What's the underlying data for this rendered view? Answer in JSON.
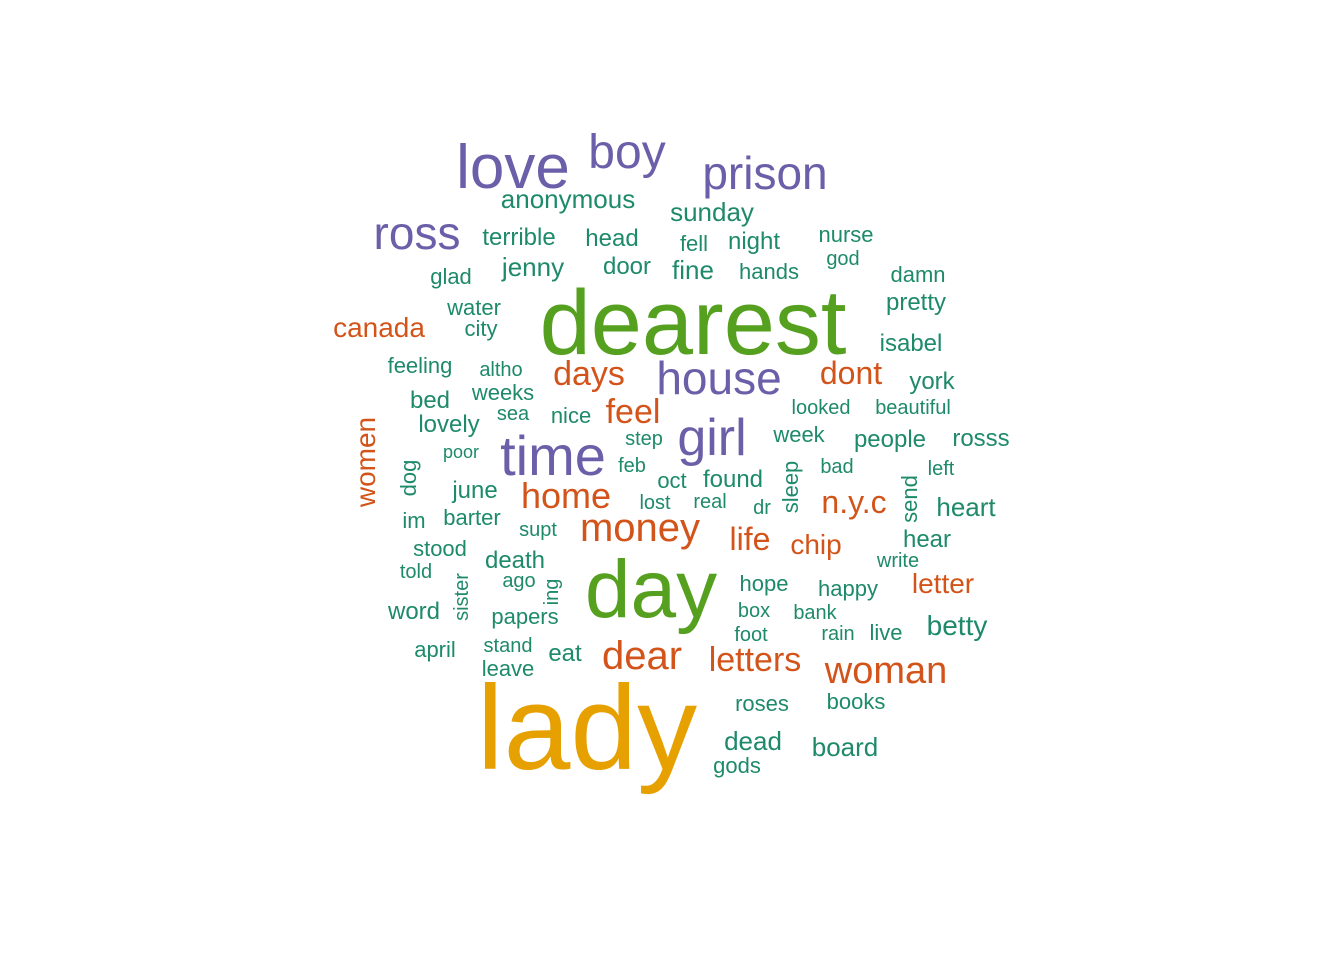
{
  "palette": {
    "gold": "#E6A000",
    "green": "#55A01E",
    "purple": "#6A5FA8",
    "orange": "#D3541A",
    "teal": "#1E8A6A"
  },
  "words": [
    {
      "text": "lady",
      "color": "gold"
    },
    {
      "text": "dearest",
      "color": "green"
    },
    {
      "text": "day",
      "color": "green"
    },
    {
      "text": "love",
      "color": "purple"
    },
    {
      "text": "boy",
      "color": "purple"
    },
    {
      "text": "prison",
      "color": "purple"
    },
    {
      "text": "ross",
      "color": "purple"
    },
    {
      "text": "time",
      "color": "purple"
    },
    {
      "text": "girl",
      "color": "purple"
    },
    {
      "text": "house",
      "color": "purple"
    },
    {
      "text": "money",
      "color": "orange"
    },
    {
      "text": "home",
      "color": "orange"
    },
    {
      "text": "dear",
      "color": "orange"
    },
    {
      "text": "woman",
      "color": "orange"
    },
    {
      "text": "letters",
      "color": "orange"
    },
    {
      "text": "days",
      "color": "orange"
    },
    {
      "text": "feel",
      "color": "orange"
    },
    {
      "text": "dont",
      "color": "orange"
    },
    {
      "text": "n.y.c",
      "color": "orange"
    },
    {
      "text": "life",
      "color": "orange"
    },
    {
      "text": "chip",
      "color": "orange"
    },
    {
      "text": "letter",
      "color": "orange"
    },
    {
      "text": "canada",
      "color": "orange"
    },
    {
      "text": "women",
      "color": "orange"
    },
    {
      "text": "anonymous",
      "color": "teal"
    },
    {
      "text": "sunday",
      "color": "teal"
    },
    {
      "text": "terrible",
      "color": "teal"
    },
    {
      "text": "head",
      "color": "teal"
    },
    {
      "text": "fell",
      "color": "teal"
    },
    {
      "text": "night",
      "color": "teal"
    },
    {
      "text": "nurse",
      "color": "teal"
    },
    {
      "text": "god",
      "color": "teal"
    },
    {
      "text": "jenny",
      "color": "teal"
    },
    {
      "text": "door",
      "color": "teal"
    },
    {
      "text": "fine",
      "color": "teal"
    },
    {
      "text": "hands",
      "color": "teal"
    },
    {
      "text": "damn",
      "color": "teal"
    },
    {
      "text": "glad",
      "color": "teal"
    },
    {
      "text": "pretty",
      "color": "teal"
    },
    {
      "text": "water",
      "color": "teal"
    },
    {
      "text": "city",
      "color": "teal"
    },
    {
      "text": "isabel",
      "color": "teal"
    },
    {
      "text": "feeling",
      "color": "teal"
    },
    {
      "text": "altho",
      "color": "teal"
    },
    {
      "text": "weeks",
      "color": "teal"
    },
    {
      "text": "york",
      "color": "teal"
    },
    {
      "text": "bed",
      "color": "teal"
    },
    {
      "text": "sea",
      "color": "teal"
    },
    {
      "text": "nice",
      "color": "teal"
    },
    {
      "text": "looked",
      "color": "teal"
    },
    {
      "text": "beautiful",
      "color": "teal"
    },
    {
      "text": "lovely",
      "color": "teal"
    },
    {
      "text": "step",
      "color": "teal"
    },
    {
      "text": "week",
      "color": "teal"
    },
    {
      "text": "people",
      "color": "teal"
    },
    {
      "text": "rosss",
      "color": "teal"
    },
    {
      "text": "poor",
      "color": "teal"
    },
    {
      "text": "feb",
      "color": "teal"
    },
    {
      "text": "bad",
      "color": "teal"
    },
    {
      "text": "left",
      "color": "teal"
    },
    {
      "text": "dog",
      "color": "teal"
    },
    {
      "text": "oct",
      "color": "teal"
    },
    {
      "text": "found",
      "color": "teal"
    },
    {
      "text": "sleep",
      "color": "teal"
    },
    {
      "text": "june",
      "color": "teal"
    },
    {
      "text": "lost",
      "color": "teal"
    },
    {
      "text": "real",
      "color": "teal"
    },
    {
      "text": "send",
      "color": "teal"
    },
    {
      "text": "heart",
      "color": "teal"
    },
    {
      "text": "im",
      "color": "teal"
    },
    {
      "text": "barter",
      "color": "teal"
    },
    {
      "text": "dr",
      "color": "teal"
    },
    {
      "text": "supt",
      "color": "teal"
    },
    {
      "text": "hear",
      "color": "teal"
    },
    {
      "text": "stood",
      "color": "teal"
    },
    {
      "text": "death",
      "color": "teal"
    },
    {
      "text": "write",
      "color": "teal"
    },
    {
      "text": "told",
      "color": "teal"
    },
    {
      "text": "ago",
      "color": "teal"
    },
    {
      "text": "hope",
      "color": "teal"
    },
    {
      "text": "sister",
      "color": "teal"
    },
    {
      "text": "ing",
      "color": "teal"
    },
    {
      "text": "happy",
      "color": "teal"
    },
    {
      "text": "word",
      "color": "teal"
    },
    {
      "text": "papers",
      "color": "teal"
    },
    {
      "text": "box",
      "color": "teal"
    },
    {
      "text": "bank",
      "color": "teal"
    },
    {
      "text": "betty",
      "color": "teal"
    },
    {
      "text": "foot",
      "color": "teal"
    },
    {
      "text": "rain",
      "color": "teal"
    },
    {
      "text": "live",
      "color": "teal"
    },
    {
      "text": "april",
      "color": "teal"
    },
    {
      "text": "stand",
      "color": "teal"
    },
    {
      "text": "eat",
      "color": "teal"
    },
    {
      "text": "leave",
      "color": "teal"
    },
    {
      "text": "roses",
      "color": "teal"
    },
    {
      "text": "books",
      "color": "teal"
    },
    {
      "text": "dead",
      "color": "teal"
    },
    {
      "text": "board",
      "color": "teal"
    },
    {
      "text": "gods",
      "color": "teal"
    }
  ]
}
